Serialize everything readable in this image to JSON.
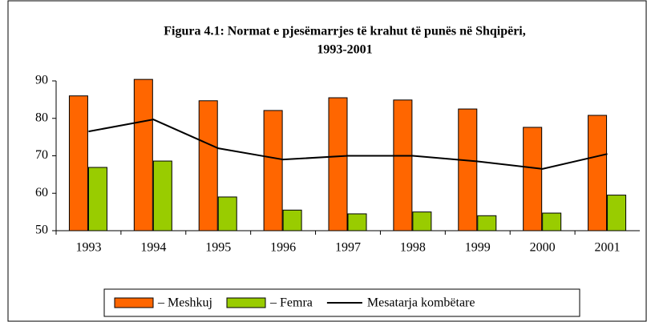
{
  "chart_data": {
    "type": "bar",
    "title": "Figura 4.1: Normat e pjesëmarrjes të krahut të punës në Shqipëri,",
    "subtitle": "1993-2001",
    "categories": [
      "1993",
      "1994",
      "1995",
      "1996",
      "1997",
      "1998",
      "1999",
      "2000",
      "2001"
    ],
    "series": [
      {
        "name": "– Meshkuj",
        "type": "bar",
        "color": "#ff6600",
        "values": [
          86,
          90.4,
          84.7,
          82.1,
          85.5,
          84.9,
          82.5,
          77.6,
          80.8
        ]
      },
      {
        "name": "– Femra",
        "type": "bar",
        "color": "#99cc00",
        "values": [
          66.9,
          68.6,
          59,
          55.5,
          54.5,
          55,
          54,
          54.7,
          59.5
        ]
      },
      {
        "name": "Mesatarja kombëtare",
        "type": "line",
        "color": "#000000",
        "values": [
          76.5,
          79.7,
          72,
          69,
          70,
          70,
          68.5,
          66.5,
          70.5
        ]
      }
    ],
    "ylim": [
      50,
      90
    ],
    "yticks": [
      50,
      60,
      70,
      80,
      90
    ],
    "grid": false,
    "legend": "bottom"
  }
}
